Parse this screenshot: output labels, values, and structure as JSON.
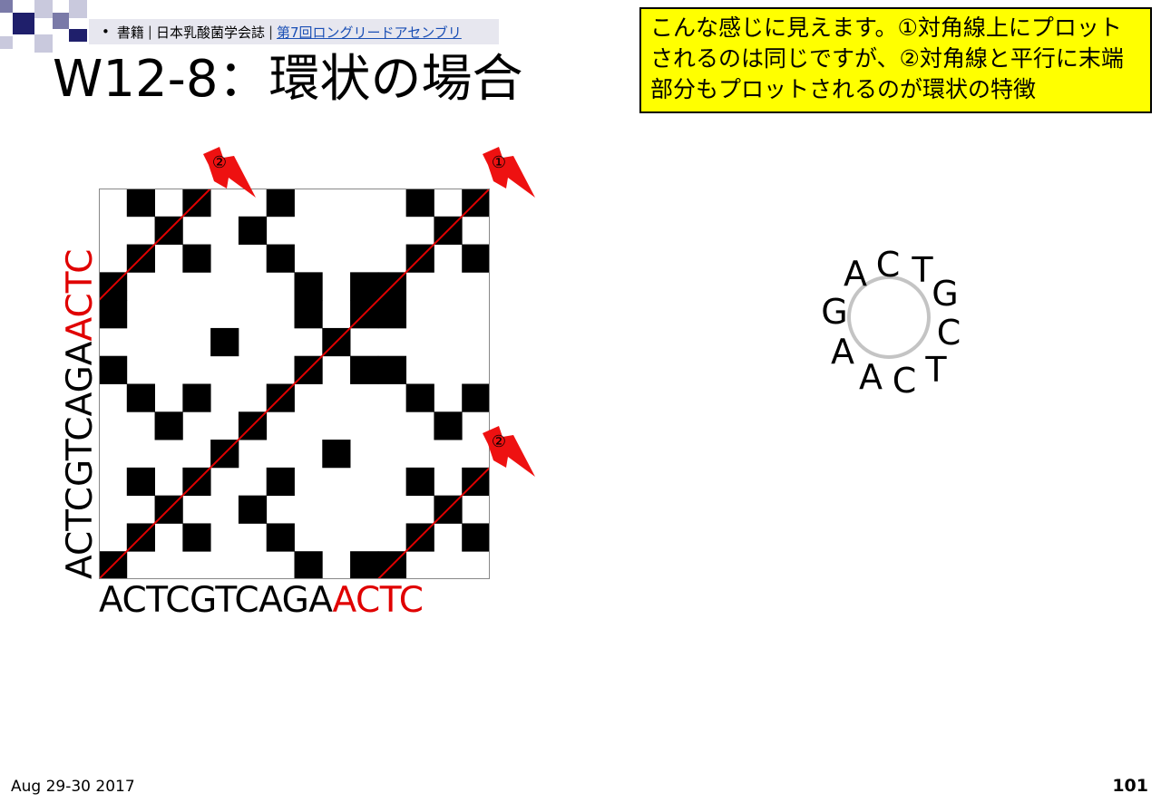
{
  "colors": {
    "deco_dark": "#1f1f6b",
    "deco_mid": "#7a7aa8",
    "deco_light": "#c9c9dd",
    "breadcrumb_bg": "#e7e7ef",
    "note_bg": "#ffff00",
    "highlight_red": "#e00000",
    "arrow_red": "#ee1111",
    "ring_gray": "#c4c4c4"
  },
  "breadcrumb": {
    "bullet": "•",
    "item1": "書籍",
    "item2": "日本乳酸菌学会誌",
    "link": "第7回ロングリードアセンブリ"
  },
  "title": "W12-8：環状の場合",
  "note": {
    "text": "こんな感じに見えます。①対角線上にプロットされるのは同じですが、②対角線と平行に末端部分もプロットされるのが環状の特徴"
  },
  "dotplot": {
    "sequence_black": "ACTCGTCAGA",
    "sequence_red": "ACTC",
    "sequence": "ACTCGTCAGAACTC",
    "y_label_black": "ACTCGTCAGA",
    "y_label_red": "ACTC",
    "arrows": [
      {
        "id": "top-left",
        "label": "②"
      },
      {
        "id": "top-right",
        "label": "①"
      },
      {
        "id": "right-middle",
        "label": "②"
      }
    ]
  },
  "circular_sequence": {
    "bases": [
      "A",
      "C",
      "T",
      "G",
      "C",
      "T",
      "C",
      "A",
      "A",
      "G"
    ]
  },
  "footer": {
    "date": "Aug 29-30 2017",
    "page": "101"
  }
}
